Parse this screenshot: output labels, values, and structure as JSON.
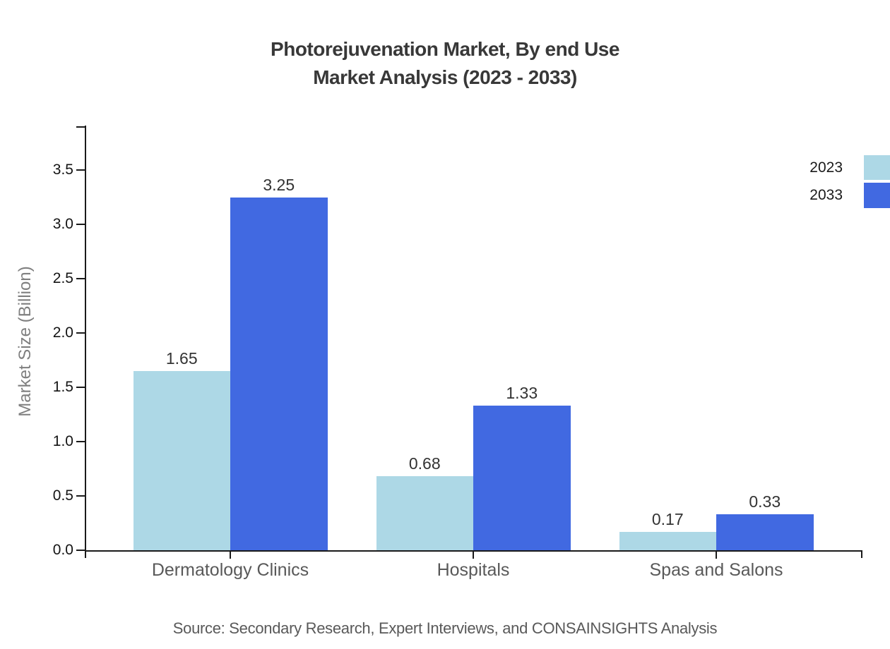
{
  "chart_data": {
    "type": "bar",
    "title": "Photorejuvenation Market, By end Use",
    "subtitle": "Market Analysis (2023 - 2033)",
    "categories": [
      "Dermatology Clinics",
      "Hospitals",
      "Spas and Salons"
    ],
    "series": [
      {
        "name": "2023",
        "color": "#ADD8E6",
        "values": [
          1.65,
          0.68,
          0.17
        ]
      },
      {
        "name": "2033",
        "color": "#4169E1",
        "values": [
          3.25,
          1.33,
          0.33
        ]
      }
    ],
    "value_labels_shown": true,
    "value_labels": [
      "1.65",
      "3.25",
      "0.68",
      "1.33",
      "0.17",
      "0.33"
    ],
    "xlabel": "",
    "ylabel": "Market Size (Billion)",
    "yticks": [
      0.0,
      0.5,
      1.0,
      1.5,
      2.0,
      2.5,
      3.0,
      3.5
    ],
    "ylim": [
      0,
      3.9
    ],
    "grid": false,
    "legend_position": "top-right-edge"
  },
  "footer": {
    "source_text": "Source: Secondary Research, Expert Interviews, and CONSAINSIGHTS Analysis"
  }
}
